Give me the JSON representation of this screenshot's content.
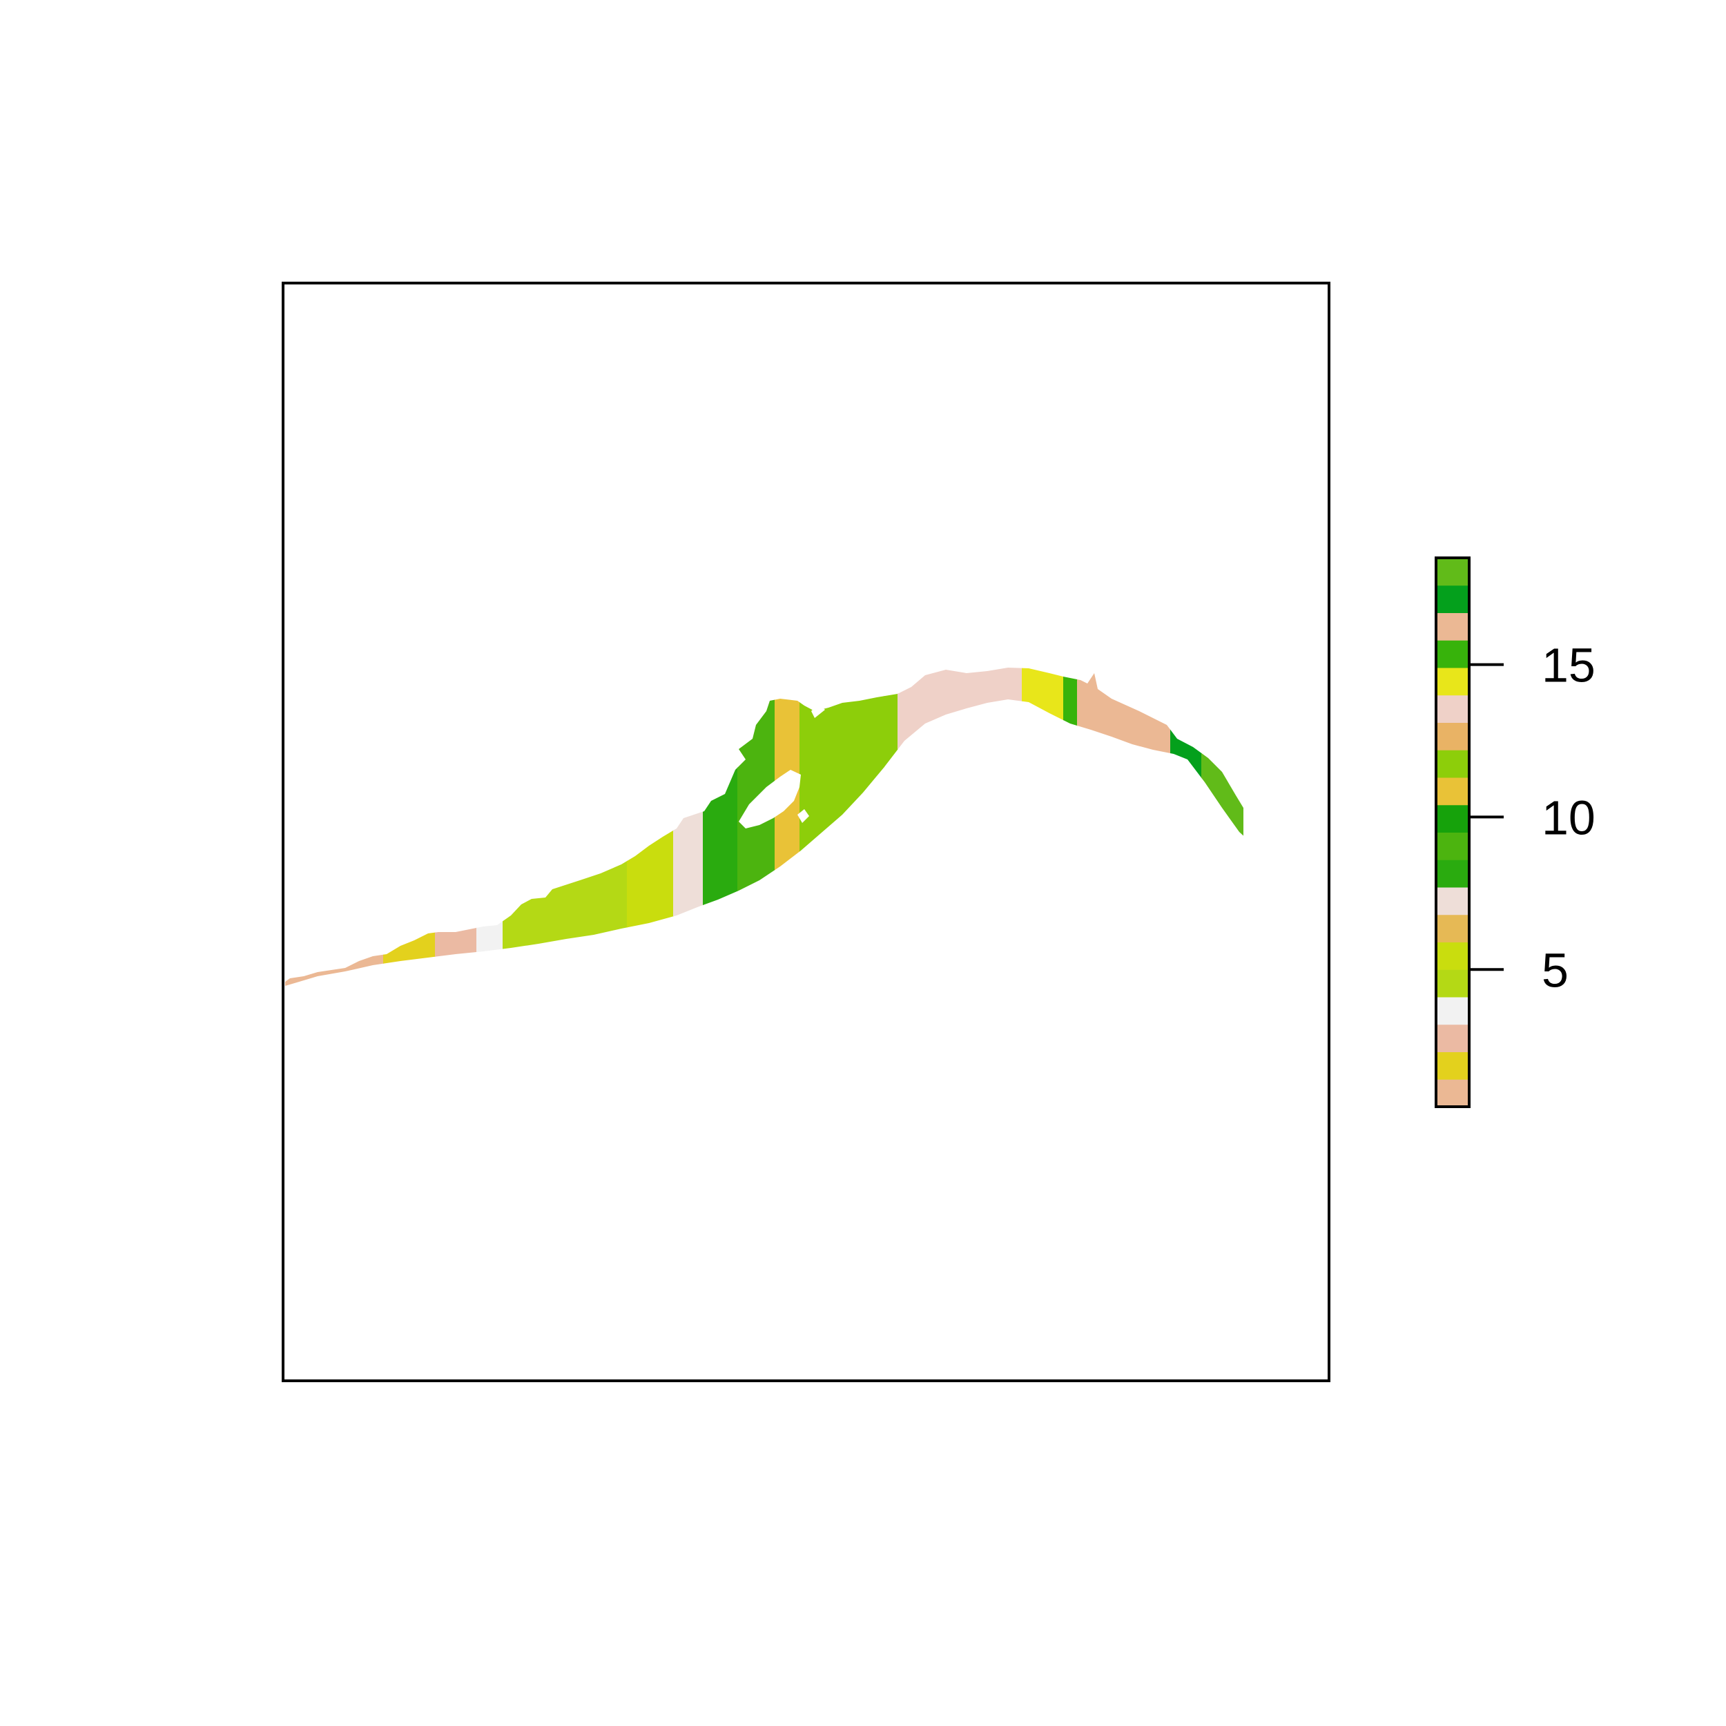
{
  "legend": {
    "ticks": [
      {
        "value": 5,
        "label": "5"
      },
      {
        "value": 10,
        "label": "10"
      },
      {
        "value": 15,
        "label": "15"
      }
    ],
    "range": [
      0.5,
      18.5
    ],
    "colors": [
      "#ebb894",
      "#e3d11d",
      "#ebbaa3",
      "#f2f2f2",
      "#b4d915",
      "#c9dd0e",
      "#e6b955",
      "#eeded8",
      "#2aab0f",
      "#4cb40f",
      "#16a20b",
      "#e9c237",
      "#8dce0a",
      "#e9b365",
      "#efd1c8",
      "#e8e61a",
      "#37b30b",
      "#ebb894",
      "#04a01c",
      "#61bb19"
    ]
  },
  "map_data": {
    "type": "raster",
    "zones": [
      {
        "value": 1,
        "color": "#ebb894"
      },
      {
        "value": 2,
        "color": "#e3d11d"
      },
      {
        "value": 3,
        "color": "#ebbaa3"
      },
      {
        "value": 4,
        "color": "#f2f2f2"
      },
      {
        "value": 5,
        "color": "#b4d915"
      },
      {
        "value": 6,
        "color": "#c9dd0e"
      },
      {
        "value": 7,
        "color": "#eeded8"
      },
      {
        "value": 8,
        "color": "#2aab0f"
      },
      {
        "value": 9,
        "color": "#4cb40f"
      },
      {
        "value": 10,
        "color": "#e9c237"
      },
      {
        "value": 11,
        "color": "#8dce0a"
      },
      {
        "value": 12,
        "color": "#8dce0a"
      },
      {
        "value": 13,
        "color": "#efd1c8"
      },
      {
        "value": 14,
        "color": "#e8e61a"
      },
      {
        "value": 15,
        "color": "#37b30b"
      },
      {
        "value": 16,
        "color": "#ebb894"
      },
      {
        "value": 17,
        "color": "#04a01c"
      },
      {
        "value": 18,
        "color": "#61bb19"
      }
    ]
  }
}
